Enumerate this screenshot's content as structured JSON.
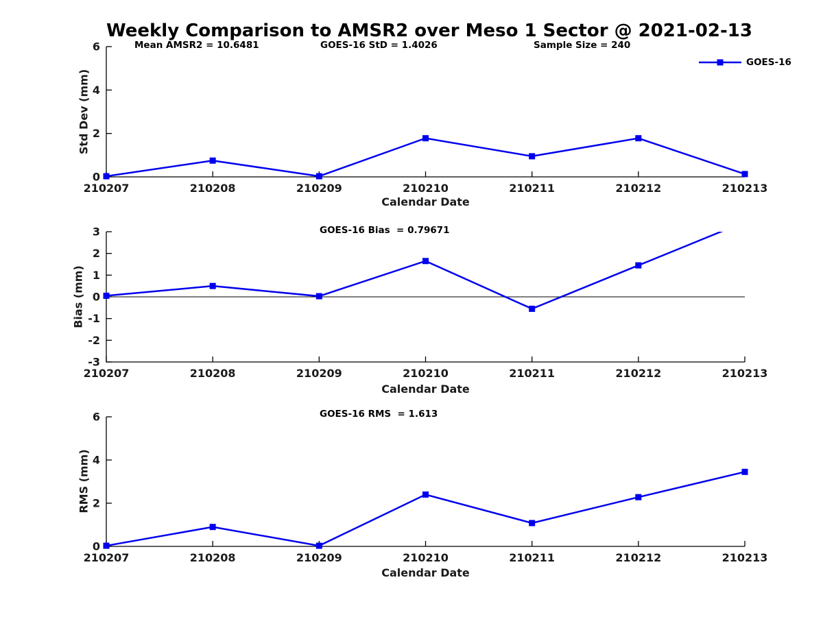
{
  "figure": {
    "title": "Weekly Comparison to AMSR2 over Meso 1 Sector @ 2021-02-13",
    "annotations": {
      "mean_amsr2": "Mean AMSR2 = 10.6481",
      "goes16_std": "GOES-16 StD = 1.4026",
      "sample_size": "Sample Size = 240"
    },
    "legend": {
      "label": "GOES-16",
      "position": "top-right",
      "marker": "filled-square"
    },
    "colors": {
      "line": "#0000ee",
      "axis": "#000000",
      "text": "#000000",
      "background": "#ffffff"
    }
  },
  "chart_data": [
    {
      "type": "line",
      "title": "",
      "xlabel": "Calendar Date",
      "ylabel": "Std Dev (mm)",
      "x": [
        "210207",
        "210208",
        "210209",
        "210210",
        "210211",
        "210212",
        "210213"
      ],
      "series": [
        {
          "name": "GOES-16",
          "values": [
            0.03,
            0.75,
            0.03,
            1.78,
            0.95,
            1.78,
            0.13
          ]
        }
      ],
      "ylim": [
        0,
        6
      ],
      "yticks": [
        0,
        2,
        4,
        6
      ],
      "zero_line": false,
      "grid": false,
      "legend_shown": true
    },
    {
      "type": "line",
      "title": "GOES-16 Bias  = 0.79671",
      "xlabel": "Calendar Date",
      "ylabel": "Bias (mm)",
      "x": [
        "210207",
        "210208",
        "210209",
        "210210",
        "210211",
        "210212",
        "210213"
      ],
      "series": [
        {
          "name": "GOES-16",
          "values": [
            0.05,
            0.5,
            0.03,
            1.65,
            -0.55,
            1.45,
            3.45
          ]
        }
      ],
      "ylim": [
        -3,
        3
      ],
      "yticks": [
        3,
        2,
        1,
        0,
        -1,
        -2,
        -3
      ],
      "zero_line": true,
      "grid": false,
      "legend_shown": false
    },
    {
      "type": "line",
      "title": "GOES-16 RMS  = 1.613",
      "xlabel": "Calendar Date",
      "ylabel": "RMS (mm)",
      "x": [
        "210207",
        "210208",
        "210209",
        "210210",
        "210211",
        "210212",
        "210213"
      ],
      "series": [
        {
          "name": "GOES-16",
          "values": [
            0.03,
            0.9,
            0.03,
            2.4,
            1.08,
            2.28,
            3.45
          ]
        }
      ],
      "ylim": [
        0,
        6
      ],
      "yticks": [
        0,
        2,
        4,
        6
      ],
      "zero_line": false,
      "grid": false,
      "legend_shown": false
    }
  ]
}
